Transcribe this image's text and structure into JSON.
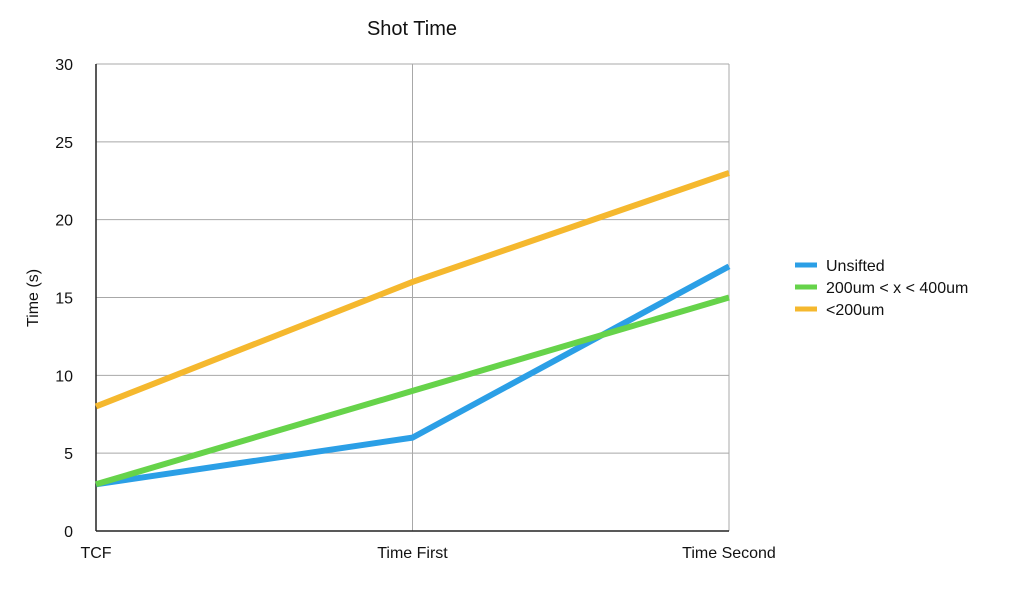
{
  "chart_data": {
    "type": "line",
    "title": "Shot Time",
    "xlabel": "",
    "ylabel": "Time (s)",
    "categories": [
      "TCF",
      "Time First",
      "Time Second"
    ],
    "ylim": [
      0,
      30
    ],
    "yticks": [
      0,
      5,
      10,
      15,
      20,
      25,
      30
    ],
    "grid": true,
    "legend": "right",
    "series": [
      {
        "name": "Unsifted",
        "color": "#2b9fe6",
        "values": [
          3,
          6,
          17
        ]
      },
      {
        "name": "200um < x < 400um",
        "color": "#66d34a",
        "values": [
          3,
          9,
          15
        ]
      },
      {
        "name": "<200um",
        "color": "#f5b82e",
        "values": [
          8,
          16,
          23
        ]
      }
    ]
  }
}
